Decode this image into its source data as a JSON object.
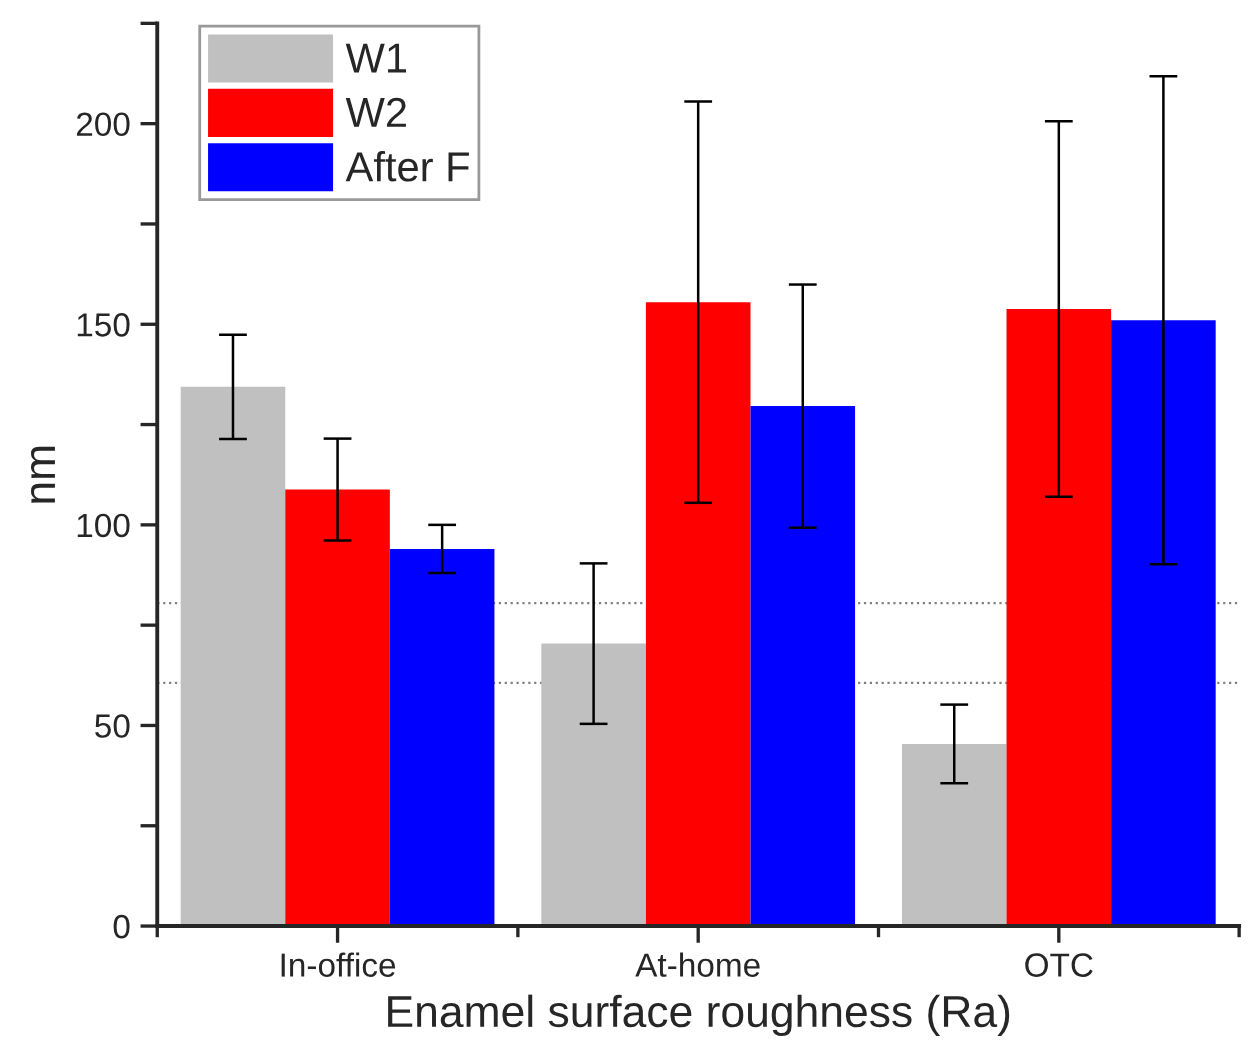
{
  "chart_data": {
    "type": "bar",
    "xlabel": "Enamel surface roughness (Ra)",
    "ylabel": "nm",
    "categories": [
      "In-office",
      "At-home",
      "OTC"
    ],
    "series": [
      {
        "name": "W1",
        "color": "#c0c0c0",
        "values": [
          134.4,
          70.4,
          45.4
        ],
        "errors": [
          13,
          20,
          9.8
        ]
      },
      {
        "name": "W2",
        "color": "#ff0000",
        "values": [
          108.8,
          155.5,
          153.8
        ],
        "errors": [
          12.7,
          50,
          46.8
        ]
      },
      {
        "name": "After F",
        "color": "#0000ff",
        "values": [
          94,
          129.6,
          151
        ],
        "errors": [
          6,
          30.3,
          60.8
        ]
      }
    ],
    "ylim": [
      0,
      225
    ],
    "yticks": [
      0,
      {
        "value": 25,
        "label": null
      },
      50,
      {
        "value": 75,
        "label": null
      },
      100,
      {
        "value": 125,
        "label": null
      },
      150,
      {
        "value": 175,
        "label": null
      },
      200,
      {
        "value": 225,
        "label": null
      }
    ],
    "ref_lines": [
      {
        "axis": "y",
        "value": 80.5,
        "color": "#808080",
        "line_style": "dotted"
      },
      {
        "axis": "y",
        "value": 60.6,
        "color": "#808080",
        "line_style": "dotted"
      }
    ],
    "grid": false,
    "legend": "top left"
  }
}
